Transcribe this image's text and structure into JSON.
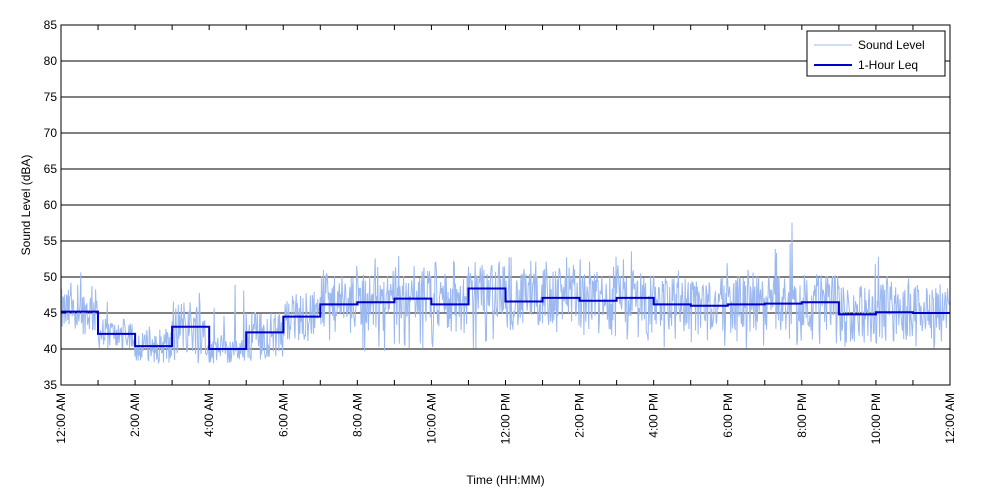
{
  "chart_data": {
    "type": "line",
    "xlabel": "Time (HH:MM)",
    "ylabel": "Sound Level (dBA)",
    "ylim": [
      35,
      85
    ],
    "y_ticks": [
      35,
      40,
      45,
      50,
      55,
      60,
      65,
      70,
      75,
      80,
      85
    ],
    "xlim_hours": [
      0,
      24
    ],
    "x_tick_labels": [
      "12:00 AM",
      "2:00 AM",
      "4:00 AM",
      "6:00 AM",
      "8:00 AM",
      "10:00 AM",
      "12:00 PM",
      "2:00 PM",
      "4:00 PM",
      "6:00 PM",
      "8:00 PM",
      "10:00 PM",
      "12:00 AM"
    ],
    "grid": "horizontal",
    "legend_position": "top-right",
    "series": [
      {
        "name": "Sound Level",
        "color": "#9bb8f0",
        "style": "thin line, rapidly fluctuating around the hourly levels",
        "hourly_min": [
          42,
          40,
          38,
          38,
          38,
          38,
          41,
          41,
          39,
          40,
          40,
          40,
          41,
          41,
          41,
          41,
          40,
          40,
          40,
          40,
          40,
          40,
          40,
          40
        ],
        "hourly_max": [
          51,
          47,
          44,
          49,
          50,
          45,
          48,
          52,
          53,
          53,
          53,
          54,
          53,
          53,
          53,
          55,
          53,
          52,
          52,
          59.5,
          52,
          53,
          53,
          49
        ]
      },
      {
        "name": "1-Hour Leq",
        "color": "#0000cc",
        "style": "step",
        "hours": [
          0,
          1,
          2,
          3,
          4,
          5,
          6,
          7,
          8,
          9,
          10,
          11,
          12,
          13,
          14,
          15,
          16,
          17,
          18,
          19,
          20,
          21,
          22,
          23
        ],
        "values": [
          45.2,
          42.1,
          40.4,
          43.1,
          40.0,
          42.3,
          44.5,
          46.2,
          46.5,
          47.0,
          46.2,
          48.4,
          46.6,
          47.1,
          46.7,
          47.1,
          46.2,
          46.0,
          46.2,
          46.3,
          46.5,
          44.8,
          45.1,
          45.0
        ]
      }
    ]
  }
}
